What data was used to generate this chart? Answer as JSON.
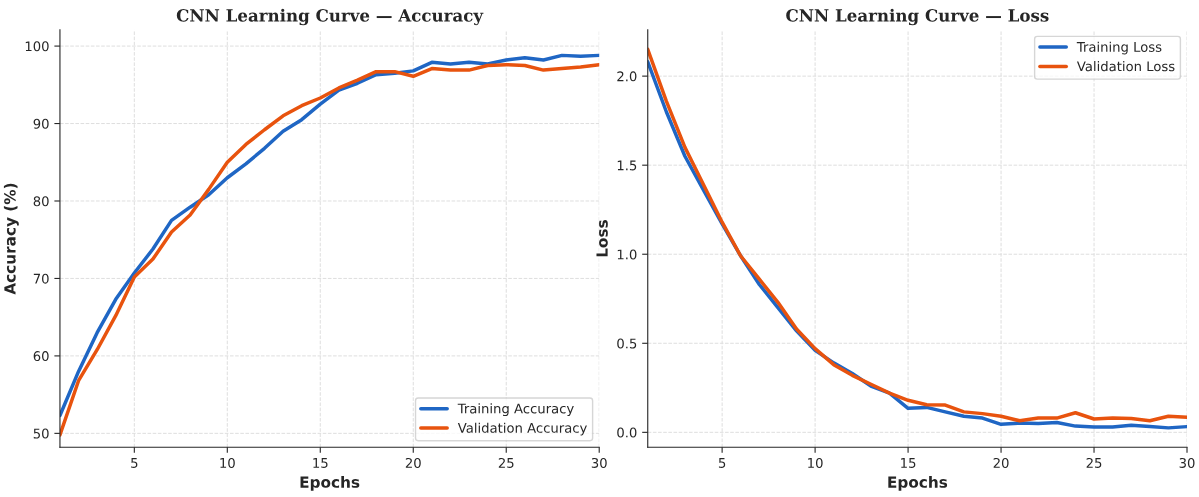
{
  "chart_data": [
    {
      "type": "line",
      "title": "CNN Learning Curve — Accuracy",
      "xlabel": "Epochs",
      "ylabel": "Accuracy (%)",
      "x": [
        1,
        2,
        3,
        4,
        5,
        6,
        7,
        8,
        9,
        10,
        11,
        12,
        13,
        14,
        15,
        16,
        17,
        18,
        19,
        20,
        21,
        22,
        23,
        24,
        25,
        26,
        27,
        28,
        29,
        30
      ],
      "series": [
        {
          "name": "Training Accuracy",
          "color": "#1f66c4",
          "values": [
            52.3,
            58,
            63,
            67.3,
            70.7,
            73.8,
            77.5,
            79.2,
            80.8,
            83,
            84.8,
            86.8,
            89,
            90.5,
            92.5,
            94.3,
            95.2,
            96.3,
            96.5,
            96.8,
            97.9,
            97.7,
            97.9,
            97.7,
            98.2,
            98.5,
            98.2,
            98.8,
            98.7,
            98.8
          ]
        },
        {
          "name": "Validation Accuracy",
          "color": "#e8530e",
          "values": [
            49.8,
            56.8,
            60.8,
            65.2,
            70.2,
            72.5,
            76,
            78.2,
            81.5,
            85,
            87.3,
            89.2,
            91,
            92.3,
            93.3,
            94.6,
            95.6,
            96.7,
            96.7,
            96.1,
            97.1,
            96.9,
            96.9,
            97.5,
            97.6,
            97.5,
            96.9,
            97.1,
            97.3,
            97.6
          ]
        }
      ],
      "xlim": [
        1,
        30
      ],
      "xticks": [
        5,
        10,
        15,
        20,
        25,
        30
      ],
      "ylim": [
        48.2,
        102.1
      ],
      "yticks": [
        50,
        60,
        70,
        80,
        90,
        100
      ],
      "grid": true,
      "legend": "bottom right"
    },
    {
      "type": "line",
      "title": "CNN Learning Curve — Loss",
      "xlabel": "Epochs",
      "ylabel": "Loss",
      "x": [
        1,
        2,
        3,
        4,
        5,
        6,
        7,
        8,
        9,
        10,
        11,
        12,
        13,
        14,
        15,
        16,
        17,
        18,
        19,
        20,
        21,
        22,
        23,
        24,
        25,
        26,
        27,
        28,
        29,
        30
      ],
      "series": [
        {
          "name": "Training Loss",
          "color": "#1f66c4",
          "values": [
            2.08,
            1.8,
            1.55,
            1.36,
            1.17,
            0.99,
            0.83,
            0.7,
            0.57,
            0.46,
            0.39,
            0.33,
            0.26,
            0.22,
            0.135,
            0.14,
            0.115,
            0.09,
            0.08,
            0.045,
            0.052,
            0.05,
            0.055,
            0.035,
            0.03,
            0.03,
            0.04,
            0.033,
            0.025,
            0.032
          ]
        },
        {
          "name": "Validation Loss",
          "color": "#e8530e",
          "values": [
            2.15,
            1.86,
            1.6,
            1.39,
            1.18,
            0.99,
            0.86,
            0.73,
            0.58,
            0.47,
            0.38,
            0.32,
            0.27,
            0.22,
            0.18,
            0.155,
            0.153,
            0.115,
            0.105,
            0.09,
            0.065,
            0.08,
            0.08,
            0.11,
            0.075,
            0.08,
            0.078,
            0.065,
            0.09,
            0.085
          ]
        }
      ],
      "xlim": [
        1,
        30
      ],
      "xticks": [
        5,
        10,
        15,
        20,
        25,
        30
      ],
      "ylim": [
        -0.084,
        2.26
      ],
      "yticks": [
        {
          "value": 0,
          "label": "0.0"
        },
        0.5,
        {
          "value": 1,
          "label": "1.0"
        },
        1.5,
        {
          "value": 2,
          "label": "2.0"
        }
      ],
      "grid": true,
      "legend": "top right"
    }
  ]
}
